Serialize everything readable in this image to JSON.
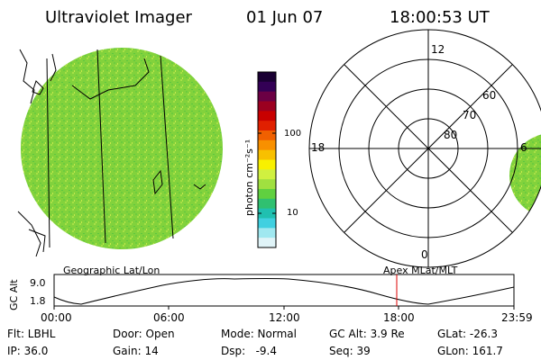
{
  "header": {
    "title": "Ultraviolet Imager",
    "date": "01 Jun 07",
    "time": "18:00:53 UT"
  },
  "colorbar": {
    "label": "photon cm⁻²s⁻¹",
    "tick_100": "100",
    "tick_10": "10",
    "colors": [
      "#1a0033",
      "#330055",
      "#6b0044",
      "#9b0020",
      "#c80000",
      "#e02000",
      "#f06000",
      "#f89000",
      "#f8c000",
      "#f8f000",
      "#d0f040",
      "#a0e040",
      "#60d040",
      "#30c070",
      "#20c0b0",
      "#40d0e0",
      "#a0e8f0",
      "#e0f4f8"
    ]
  },
  "left_panel": {
    "caption": "Geographic Lat/Lon",
    "disk_color": "#7ccf3a"
  },
  "right_panel": {
    "caption": "Apex MLat/MLT",
    "labels": {
      "mlt_12": "12",
      "mlt_18": "18",
      "mlt_6": "6",
      "mlt_0": "0",
      "lat_60": "60",
      "lat_70": "70",
      "lat_80": "80"
    }
  },
  "alt_plot": {
    "ylabel": "GC Alt",
    "ytick_high": "9.0",
    "ytick_low": "1.8",
    "xticks": [
      "00:00",
      "06:00",
      "12:00",
      "18:00",
      "23:59"
    ],
    "current_marker_color": "#dd0000"
  },
  "info": {
    "row1": {
      "flt": "Flt: LBHL",
      "door": "Door: Open",
      "mode": "Mode: Normal",
      "gcalt": "GC Alt: 3.9 Re",
      "glat": "GLat: -26.3"
    },
    "row2": {
      "ip": "IP: 36.0",
      "gain": "Gain: 14",
      "dsp": "Dsp:   -9.4",
      "seq": "Seq: 39",
      "glon": "GLon: 161.7"
    }
  }
}
